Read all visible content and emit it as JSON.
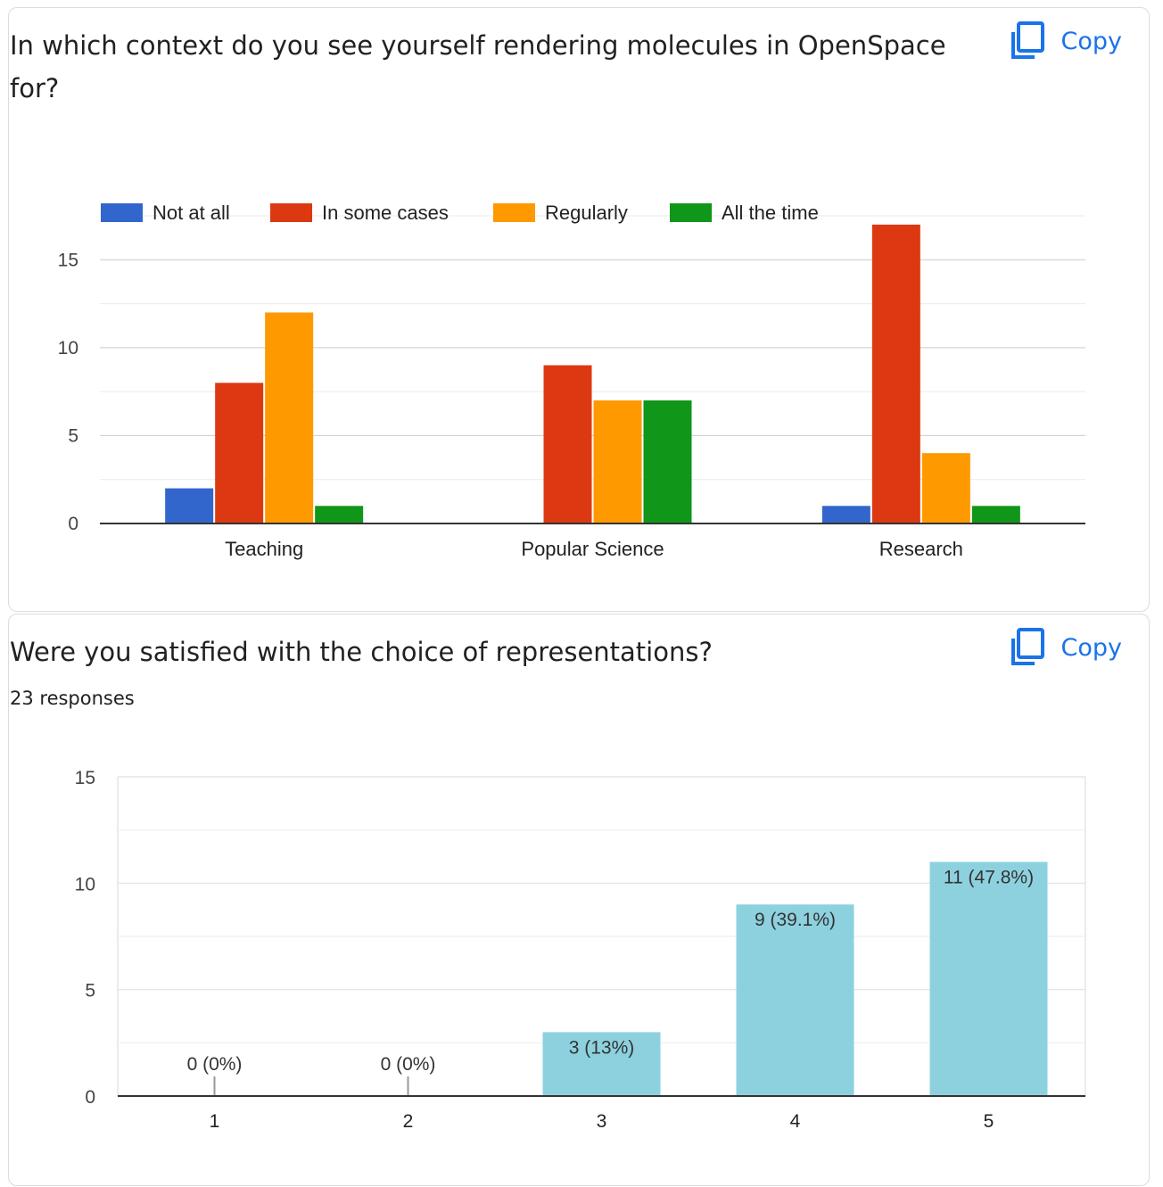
{
  "copy_icon_name": "copy-icon",
  "accent_color": "#1a73e8",
  "questions": [
    {
      "title": "In which context do you see yourself rendering molecules in OpenSpace for?",
      "copy_label": "Copy"
    },
    {
      "title": "Were you satisfied with the choice of representations?",
      "responses": "23 responses",
      "copy_label": "Copy"
    }
  ],
  "chart_data": [
    {
      "type": "bar",
      "categories": [
        "Teaching",
        "Popular Science",
        "Research"
      ],
      "series": [
        {
          "name": "Not at all",
          "color": "#3366cc",
          "values": [
            2,
            0,
            1
          ]
        },
        {
          "name": "In some cases",
          "color": "#dc3912",
          "values": [
            8,
            9,
            17
          ]
        },
        {
          "name": "Regularly",
          "color": "#ff9900",
          "values": [
            12,
            7,
            4
          ]
        },
        {
          "name": "All the time",
          "color": "#109618",
          "values": [
            1,
            7,
            1
          ]
        }
      ],
      "ylim": [
        0,
        17.5
      ],
      "yticks": [
        0,
        5,
        10,
        15
      ],
      "grid": true,
      "legend": "top-left"
    },
    {
      "type": "bar",
      "categories": [
        "1",
        "2",
        "3",
        "4",
        "5"
      ],
      "values": [
        0,
        0,
        3,
        9,
        11
      ],
      "labels": [
        "0 (0%)",
        "0 (0%)",
        "3 (13%)",
        "9 (39.1%)",
        "11 (47.8%)"
      ],
      "color": "#8dd1df",
      "ylim": [
        0,
        15
      ],
      "yticks": [
        0,
        5,
        10,
        15
      ],
      "grid": true
    }
  ]
}
